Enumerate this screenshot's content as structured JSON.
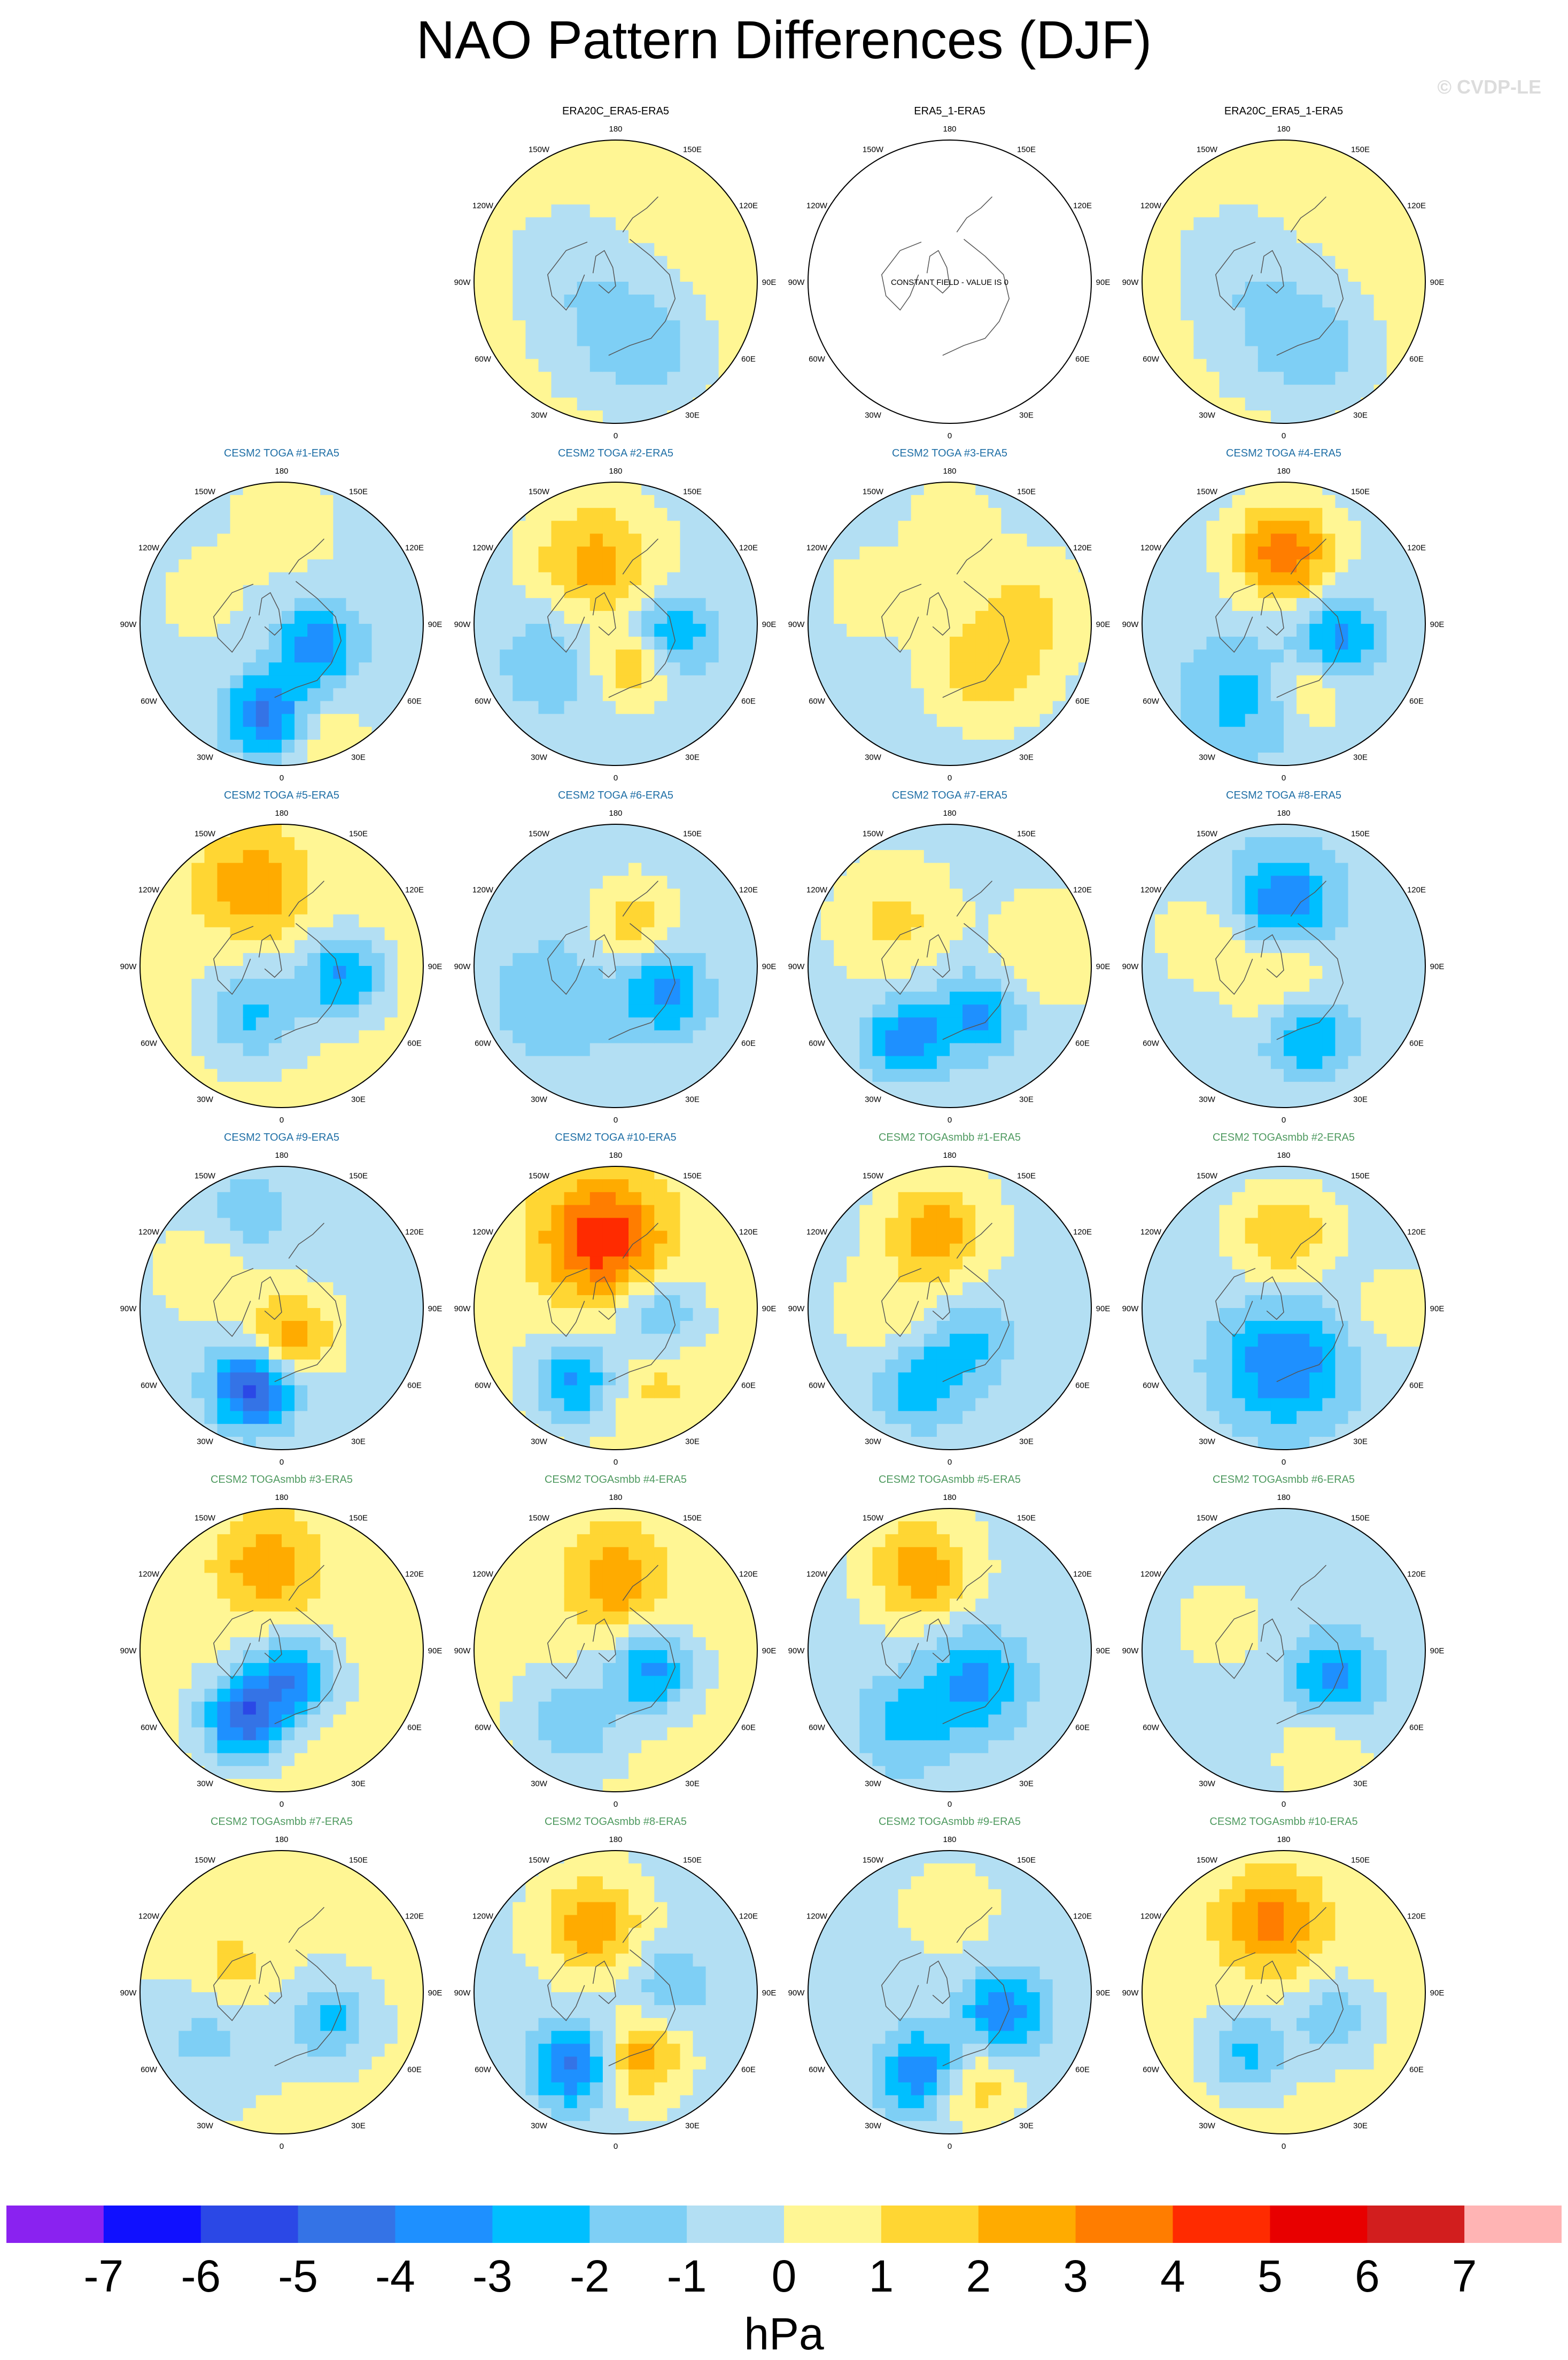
{
  "title": "NAO Pattern Differences (DJF)",
  "watermark": "© CVDP-LE",
  "colors": {
    "title_obs": "#000000",
    "title_toga": "#1f6fa6",
    "title_togasmbb": "#4f9a60",
    "land_outline": "#555555"
  },
  "chart_data": {
    "type": "heatmap",
    "projection": "north polar stereographic",
    "season": "DJF",
    "panels": [
      {
        "title": "",
        "kind": "empty"
      },
      {
        "title": "ERA20C_ERA5-ERA5",
        "kind": "obs",
        "pattern": {
          "base": 0.4,
          "features": [
            [
              0,
              0.35,
              -1.6,
              0.35
            ],
            [
              30,
              0.6,
              -1.0,
              0.25
            ],
            [
              250,
              0.4,
              -0.8,
              0.3
            ]
          ]
        }
      },
      {
        "title": "ERA5_1-ERA5",
        "kind": "constant",
        "note": "CONSTANT FIELD - VALUE IS 0"
      },
      {
        "title": "ERA20C_ERA5_1-ERA5",
        "kind": "obs",
        "pattern": {
          "base": 0.4,
          "features": [
            [
              0,
              0.35,
              -1.6,
              0.35
            ],
            [
              30,
              0.6,
              -1.0,
              0.25
            ],
            [
              250,
              0.4,
              -0.8,
              0.3
            ]
          ]
        }
      },
      {
        "title": "CESM2 TOGA #1-ERA5",
        "kind": "toga",
        "pattern": {
          "base": -0.3,
          "features": [
            [
              350,
              0.65,
              -4.0,
              0.2
            ],
            [
              60,
              0.3,
              -3.5,
              0.2
            ],
            [
              20,
              0.9,
              1.2,
              0.2
            ],
            [
              180,
              0.7,
              1.0,
              0.25
            ],
            [
              250,
              0.6,
              0.8,
              0.2
            ]
          ]
        }
      },
      {
        "title": "CESM2 TOGA #2-ERA5",
        "kind": "toga",
        "pattern": {
          "base": -0.3,
          "features": [
            [
              200,
              0.45,
              2.8,
              0.3
            ],
            [
              20,
              0.3,
              2.5,
              0.2
            ],
            [
              80,
              0.4,
              -3.0,
              0.2
            ],
            [
              300,
              0.5,
              -1.5,
              0.3
            ]
          ]
        }
      },
      {
        "title": "CESM2 TOGA #3-ERA5",
        "kind": "toga",
        "pattern": {
          "base": -0.5,
          "features": [
            [
              40,
              0.4,
              2.0,
              0.3
            ],
            [
              100,
              0.6,
              1.5,
              0.3
            ],
            [
              250,
              0.6,
              1.0,
              0.25
            ],
            [
              180,
              0.7,
              1.0,
              0.25
            ]
          ]
        }
      },
      {
        "title": "CESM2 TOGA #4-ERA5",
        "kind": "toga",
        "pattern": {
          "base": -0.4,
          "features": [
            [
              180,
              0.5,
              4.0,
              0.25
            ],
            [
              80,
              0.4,
              -3.0,
              0.2
            ],
            [
              330,
              0.6,
              -2.0,
              0.3
            ],
            [
              20,
              0.5,
              1.5,
              0.2
            ]
          ]
        }
      },
      {
        "title": "CESM2 TOGA #5-ERA5",
        "kind": "toga",
        "pattern": {
          "base": 0.4,
          "features": [
            [
              200,
              0.6,
              2.5,
              0.25
            ],
            [
              80,
              0.45,
              -3.5,
              0.2
            ],
            [
              330,
              0.4,
              -2.5,
              0.25
            ]
          ]
        }
      },
      {
        "title": "CESM2 TOGA #6-ERA5",
        "kind": "toga",
        "pattern": {
          "base": -0.4,
          "features": [
            [
              160,
              0.35,
              2.0,
              0.2
            ],
            [
              60,
              0.4,
              -3.0,
              0.2
            ],
            [
              300,
              0.5,
              -1.5,
              0.3
            ]
          ]
        }
      },
      {
        "title": "CESM2 TOGA #7-ERA5",
        "kind": "toga",
        "pattern": {
          "base": -0.2,
          "features": [
            [
              330,
              0.6,
              -3.5,
              0.2
            ],
            [
              30,
              0.4,
              -3.0,
              0.2
            ],
            [
              230,
              0.5,
              1.5,
              0.25
            ],
            [
              100,
              0.7,
              1.0,
              0.25
            ]
          ]
        }
      },
      {
        "title": "CESM2 TOGA #8-ERA5",
        "kind": "toga",
        "pattern": {
          "base": -0.5,
          "features": [
            [
              180,
              0.45,
              -3.5,
              0.25
            ],
            [
              0,
              0.1,
              2.0,
              0.25
            ],
            [
              20,
              0.5,
              -3.0,
              0.2
            ],
            [
              250,
              0.6,
              1.2,
              0.25
            ]
          ]
        }
      },
      {
        "title": "CESM2 TOGA #9-ERA5",
        "kind": "toga",
        "pattern": {
          "base": -0.3,
          "features": [
            [
              340,
              0.6,
              -5.0,
              0.2
            ],
            [
              20,
              0.2,
              3.0,
              0.2
            ],
            [
              200,
              0.7,
              -1.5,
              0.2
            ],
            [
              240,
              0.6,
              1.0,
              0.25
            ]
          ]
        }
      },
      {
        "title": "CESM2 TOGA #10-ERA5",
        "kind": "toga",
        "pattern": {
          "base": 0.3,
          "features": [
            [
              190,
              0.5,
              4.5,
              0.3
            ],
            [
              330,
              0.6,
              -3.5,
              0.2
            ],
            [
              80,
              0.3,
              -2.5,
              0.2
            ],
            [
              30,
              0.6,
              1.0,
              0.2
            ]
          ]
        }
      },
      {
        "title": "CESM2 TOGAsmbb #1-ERA5",
        "kind": "togasmbb",
        "pattern": {
          "base": -0.3,
          "features": [
            [
              190,
              0.55,
              3.0,
              0.25
            ],
            [
              340,
              0.6,
              -2.5,
              0.2
            ],
            [
              30,
              0.3,
              -2.0,
              0.2
            ],
            [
              270,
              0.5,
              1.2,
              0.2
            ]
          ]
        }
      },
      {
        "title": "CESM2 TOGAsmbb #2-ERA5",
        "kind": "togasmbb",
        "pattern": {
          "base": -0.5,
          "features": [
            [
              180,
              0.5,
              2.5,
              0.25
            ],
            [
              0,
              0.4,
              -3.5,
              0.3
            ],
            [
              90,
              0.8,
              1.5,
              0.2
            ]
          ]
        }
      },
      {
        "title": "CESM2 TOGAsmbb #3-ERA5",
        "kind": "togasmbb",
        "pattern": {
          "base": 0.3,
          "features": [
            [
              190,
              0.6,
              2.5,
              0.25
            ],
            [
              330,
              0.55,
              -5.0,
              0.2
            ],
            [
              20,
              0.2,
              -4.0,
              0.2
            ]
          ]
        }
      },
      {
        "title": "CESM2 TOGAsmbb #4-ERA5",
        "kind": "togasmbb",
        "pattern": {
          "base": 0.3,
          "features": [
            [
              180,
              0.5,
              2.5,
              0.25
            ],
            [
              60,
              0.3,
              -3.5,
              0.2
            ],
            [
              330,
              0.6,
              -2.0,
              0.25
            ]
          ]
        }
      },
      {
        "title": "CESM2 TOGAsmbb #5-ERA5",
        "kind": "togasmbb",
        "pattern": {
          "base": -0.3,
          "features": [
            [
              200,
              0.6,
              3.0,
              0.25
            ],
            [
              40,
              0.3,
              -3.0,
              0.25
            ],
            [
              330,
              0.6,
              -2.0,
              0.25
            ]
          ]
        }
      },
      {
        "title": "CESM2 TOGAsmbb #6-ERA5",
        "kind": "togasmbb",
        "pattern": {
          "base": -0.5,
          "features": [
            [
              60,
              0.4,
              -3.0,
              0.2
            ],
            [
              20,
              0.8,
              1.2,
              0.25
            ],
            [
              250,
              0.5,
              1.0,
              0.25
            ]
          ]
        }
      },
      {
        "title": "CESM2 TOGAsmbb #7-ERA5",
        "kind": "togasmbb",
        "pattern": {
          "base": 0.2,
          "features": [
            [
              60,
              0.4,
              -2.5,
              0.2
            ],
            [
              300,
              0.6,
              -1.5,
              0.3
            ],
            [
              250,
              0.4,
              1.5,
              0.2
            ]
          ]
        }
      },
      {
        "title": "CESM2 TOGAsmbb #8-ERA5",
        "kind": "togasmbb",
        "pattern": {
          "base": -0.3,
          "features": [
            [
              200,
              0.5,
              3.0,
              0.25
            ],
            [
              330,
              0.6,
              -4.0,
              0.2
            ],
            [
              20,
              0.5,
              3.0,
              0.2
            ],
            [
              100,
              0.4,
              -1.5,
              0.2
            ]
          ]
        }
      },
      {
        "title": "CESM2 TOGAsmbb #9-ERA5",
        "kind": "togasmbb",
        "pattern": {
          "base": -0.4,
          "features": [
            [
              340,
              0.6,
              -3.5,
              0.2
            ],
            [
              70,
              0.4,
              -3.5,
              0.2
            ],
            [
              15,
              0.7,
              2.0,
              0.2
            ],
            [
              180,
              0.6,
              1.0,
              0.25
            ]
          ]
        }
      },
      {
        "title": "CESM2 TOGAsmbb #10-ERA5",
        "kind": "togasmbb",
        "pattern": {
          "base": 0.3,
          "features": [
            [
              190,
              0.5,
              3.0,
              0.25
            ],
            [
              330,
              0.5,
              -2.5,
              0.2
            ],
            [
              60,
              0.4,
              -2.0,
              0.2
            ]
          ]
        }
      }
    ],
    "lon_labels": [
      "180",
      "150E",
      "120E",
      "90E",
      "60E",
      "30E",
      "0",
      "30W",
      "60W",
      "90W",
      "120W",
      "150W"
    ],
    "colorbar": {
      "label": "hPa",
      "ticks": [
        "-7",
        "-6",
        "-5",
        "-4",
        "-3",
        "-2",
        "-1",
        "0",
        "1",
        "2",
        "3",
        "4",
        "5",
        "6",
        "7"
      ],
      "levels": [
        -7,
        -6,
        -5,
        -4,
        -3,
        -2,
        -1,
        0,
        1,
        2,
        3,
        4,
        5,
        6,
        7
      ],
      "colors": [
        "#8a22f0",
        "#1010ff",
        "#2b48e6",
        "#3473e6",
        "#1e90ff",
        "#00bfff",
        "#7ecff5",
        "#b3dff3",
        "#fff694",
        "#ffd633",
        "#ffab00",
        "#ff7d00",
        "#ff2b00",
        "#e80000",
        "#d21e1e",
        "#ffb4b4"
      ]
    }
  }
}
